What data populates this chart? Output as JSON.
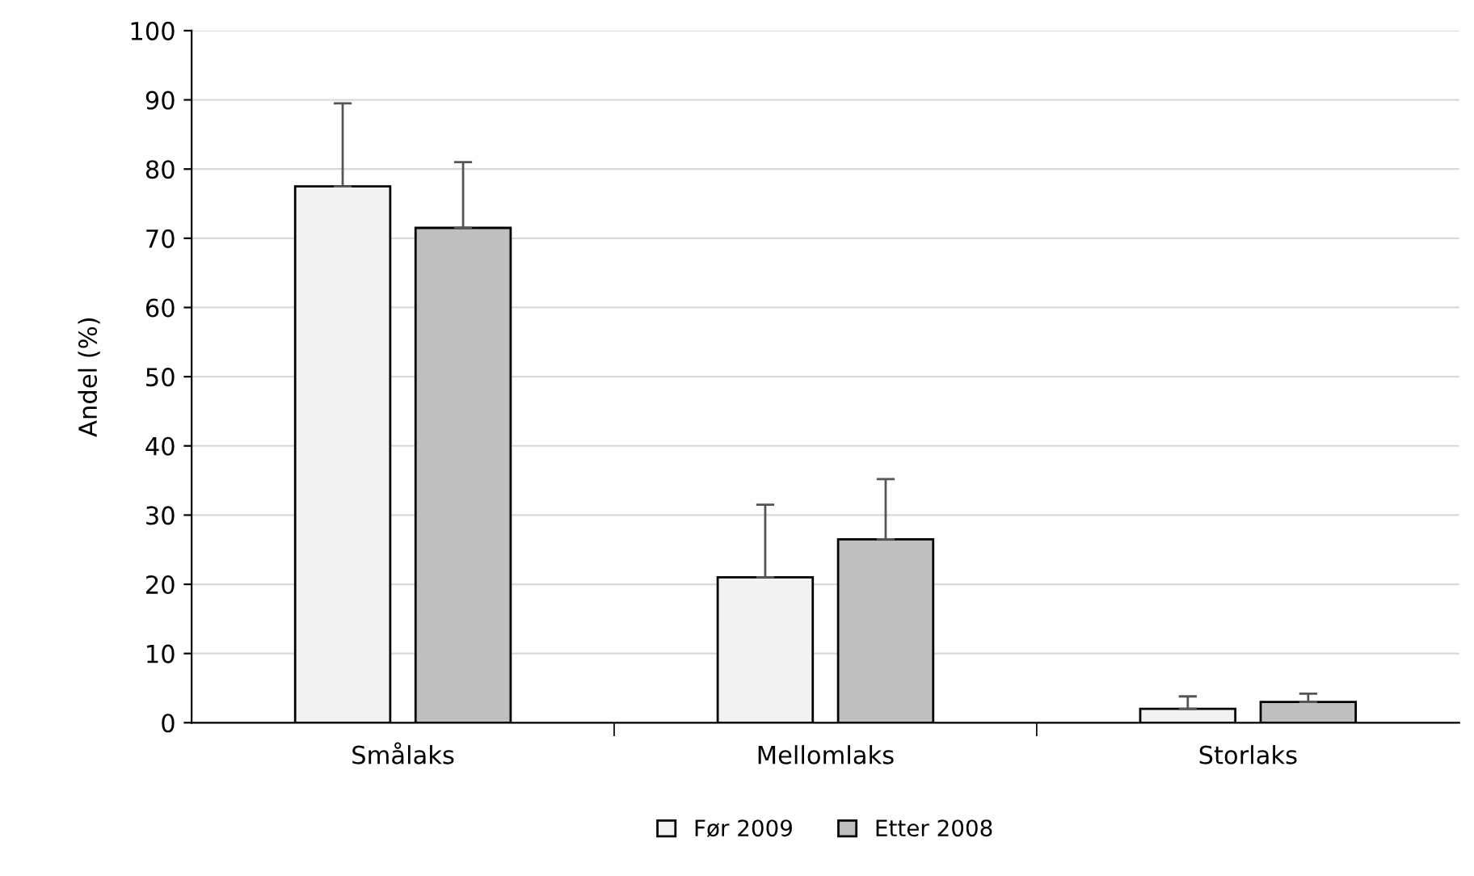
{
  "chart_data": {
    "type": "bar",
    "ylabel": "Andel (%)",
    "categories": [
      "Smålaks",
      "Mellomlaks",
      "Storlaks"
    ],
    "series": [
      {
        "name": "Før 2009",
        "color": "#f2f2f2",
        "values": [
          77.5,
          21,
          2
        ],
        "errors": [
          [
            77.5,
            89.5
          ],
          [
            21,
            31.5
          ],
          [
            2,
            3.8
          ]
        ]
      },
      {
        "name": "Etter 2008",
        "color": "#bfbfbf",
        "values": [
          71.5,
          26.5,
          3
        ],
        "errors": [
          [
            71.5,
            81
          ],
          [
            26.5,
            35.2
          ],
          [
            3,
            4.2
          ]
        ]
      }
    ],
    "ylim": [
      0,
      100
    ],
    "yticks": [
      0,
      10,
      20,
      30,
      40,
      50,
      60,
      70,
      80,
      90,
      100
    ],
    "grid": "y",
    "legend": "bottom"
  }
}
